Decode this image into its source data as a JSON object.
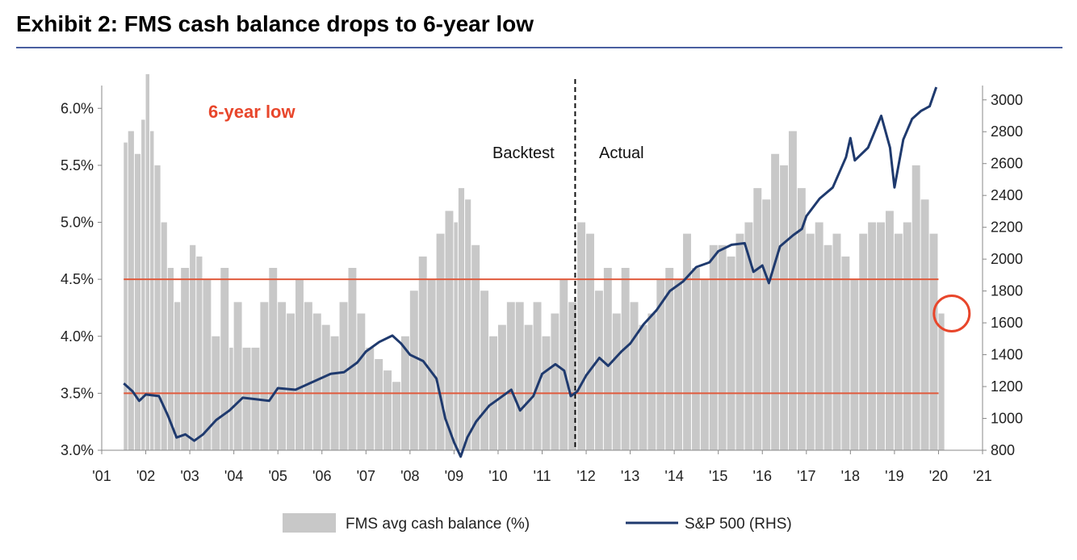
{
  "header": {
    "title": "Exhibit 2: FMS cash balance drops to 6-year low"
  },
  "colors": {
    "bar": "#c8c8c8",
    "line": "#1f3a6e",
    "threshold": "#e05a3c",
    "accent": "#e8462b",
    "rule": "#4a5fa0"
  },
  "annotations": {
    "low_label": "6-year low",
    "backtest": "Backtest",
    "actual": "Actual"
  },
  "legend": {
    "bars": "FMS avg cash balance (%)",
    "line": "S&P 500 (RHS)"
  },
  "chart_data": {
    "type": "bar",
    "title": "Exhibit 2: FMS cash balance drops to 6-year low",
    "x_ticks": [
      "'01",
      "'02",
      "'03",
      "'04",
      "'05",
      "'06",
      "'07",
      "'08",
      "'09",
      "'10",
      "'11",
      "'12",
      "'13",
      "'14",
      "'15",
      "'16",
      "'17",
      "'18",
      "'19",
      "'20",
      "'21"
    ],
    "xlim": [
      2001,
      2021
    ],
    "y_left": {
      "ticks": [
        "3.0%",
        "3.5%",
        "4.0%",
        "4.5%",
        "5.0%",
        "5.5%",
        "6.0%"
      ],
      "ylim": [
        3.0,
        6.2
      ]
    },
    "y_right": {
      "ticks": [
        "800",
        "1000",
        "1200",
        "1400",
        "1600",
        "1800",
        "2000",
        "2200",
        "2400",
        "2600",
        "2800",
        "3000"
      ],
      "ylim": [
        800,
        3090
      ]
    },
    "thresholds": [
      4.5,
      3.5
    ],
    "divider_x": 2011.75,
    "highlight_point": {
      "x": 2020.3,
      "y": 4.2
    },
    "series": [
      {
        "name": "FMS avg cash balance (%)",
        "kind": "bar",
        "points": [
          [
            2001.5,
            5.7
          ],
          [
            2001.6,
            5.8
          ],
          [
            2001.75,
            5.6
          ],
          [
            2001.9,
            5.9
          ],
          [
            2002.0,
            6.3
          ],
          [
            2002.1,
            5.8
          ],
          [
            2002.2,
            5.5
          ],
          [
            2002.35,
            5.0
          ],
          [
            2002.5,
            4.6
          ],
          [
            2002.65,
            4.3
          ],
          [
            2002.8,
            4.6
          ],
          [
            2003.0,
            4.8
          ],
          [
            2003.15,
            4.7
          ],
          [
            2003.3,
            4.5
          ],
          [
            2003.5,
            4.0
          ],
          [
            2003.7,
            4.6
          ],
          [
            2003.9,
            3.9
          ],
          [
            2004.0,
            4.3
          ],
          [
            2004.2,
            3.9
          ],
          [
            2004.4,
            3.9
          ],
          [
            2004.6,
            4.3
          ],
          [
            2004.8,
            4.6
          ],
          [
            2005.0,
            4.3
          ],
          [
            2005.2,
            4.2
          ],
          [
            2005.4,
            4.5
          ],
          [
            2005.6,
            4.3
          ],
          [
            2005.8,
            4.2
          ],
          [
            2006.0,
            4.1
          ],
          [
            2006.2,
            4.0
          ],
          [
            2006.4,
            4.3
          ],
          [
            2006.6,
            4.6
          ],
          [
            2006.8,
            4.2
          ],
          [
            2007.0,
            3.9
          ],
          [
            2007.2,
            3.8
          ],
          [
            2007.4,
            3.7
          ],
          [
            2007.6,
            3.6
          ],
          [
            2007.8,
            4.0
          ],
          [
            2008.0,
            4.4
          ],
          [
            2008.2,
            4.7
          ],
          [
            2008.4,
            4.5
          ],
          [
            2008.6,
            4.9
          ],
          [
            2008.8,
            5.1
          ],
          [
            2009.0,
            5.0
          ],
          [
            2009.1,
            5.3
          ],
          [
            2009.25,
            5.2
          ],
          [
            2009.4,
            4.8
          ],
          [
            2009.6,
            4.4
          ],
          [
            2009.8,
            4.0
          ],
          [
            2010.0,
            4.1
          ],
          [
            2010.2,
            4.3
          ],
          [
            2010.4,
            4.3
          ],
          [
            2010.6,
            4.1
          ],
          [
            2010.8,
            4.3
          ],
          [
            2011.0,
            4.0
          ],
          [
            2011.2,
            4.2
          ],
          [
            2011.4,
            4.5
          ],
          [
            2011.6,
            4.3
          ],
          [
            2011.8,
            5.0
          ],
          [
            2012.0,
            4.9
          ],
          [
            2012.2,
            4.4
          ],
          [
            2012.4,
            4.6
          ],
          [
            2012.6,
            4.2
          ],
          [
            2012.8,
            4.6
          ],
          [
            2013.0,
            4.3
          ],
          [
            2013.2,
            4.1
          ],
          [
            2013.4,
            4.2
          ],
          [
            2013.6,
            4.5
          ],
          [
            2013.8,
            4.6
          ],
          [
            2014.0,
            4.5
          ],
          [
            2014.2,
            4.9
          ],
          [
            2014.4,
            4.6
          ],
          [
            2014.6,
            4.5
          ],
          [
            2014.8,
            4.8
          ],
          [
            2015.0,
            4.8
          ],
          [
            2015.2,
            4.7
          ],
          [
            2015.4,
            4.9
          ],
          [
            2015.6,
            5.0
          ],
          [
            2015.8,
            5.3
          ],
          [
            2016.0,
            5.2
          ],
          [
            2016.2,
            5.6
          ],
          [
            2016.4,
            5.5
          ],
          [
            2016.6,
            5.8
          ],
          [
            2016.8,
            5.3
          ],
          [
            2017.0,
            4.9
          ],
          [
            2017.2,
            5.0
          ],
          [
            2017.4,
            4.8
          ],
          [
            2017.6,
            4.9
          ],
          [
            2017.8,
            4.7
          ],
          [
            2018.0,
            4.5
          ],
          [
            2018.2,
            4.9
          ],
          [
            2018.4,
            5.0
          ],
          [
            2018.6,
            5.0
          ],
          [
            2018.8,
            5.1
          ],
          [
            2019.0,
            4.9
          ],
          [
            2019.2,
            5.0
          ],
          [
            2019.4,
            5.5
          ],
          [
            2019.6,
            5.2
          ],
          [
            2019.8,
            4.9
          ],
          [
            2020.0,
            4.2
          ]
        ]
      },
      {
        "name": "S&P 500 (RHS)",
        "kind": "line",
        "points": [
          [
            2001.5,
            1220
          ],
          [
            2001.7,
            1170
          ],
          [
            2001.85,
            1110
          ],
          [
            2002.0,
            1150
          ],
          [
            2002.3,
            1140
          ],
          [
            2002.5,
            1020
          ],
          [
            2002.7,
            880
          ],
          [
            2002.9,
            900
          ],
          [
            2003.1,
            860
          ],
          [
            2003.3,
            900
          ],
          [
            2003.6,
            990
          ],
          [
            2003.9,
            1050
          ],
          [
            2004.2,
            1130
          ],
          [
            2004.5,
            1120
          ],
          [
            2004.8,
            1110
          ],
          [
            2005.0,
            1190
          ],
          [
            2005.4,
            1180
          ],
          [
            2005.8,
            1230
          ],
          [
            2006.2,
            1280
          ],
          [
            2006.5,
            1290
          ],
          [
            2006.8,
            1350
          ],
          [
            2007.0,
            1420
          ],
          [
            2007.3,
            1480
          ],
          [
            2007.6,
            1520
          ],
          [
            2007.8,
            1470
          ],
          [
            2008.0,
            1400
          ],
          [
            2008.3,
            1360
          ],
          [
            2008.6,
            1250
          ],
          [
            2008.8,
            1000
          ],
          [
            2009.0,
            850
          ],
          [
            2009.15,
            760
          ],
          [
            2009.3,
            880
          ],
          [
            2009.5,
            980
          ],
          [
            2009.8,
            1080
          ],
          [
            2010.0,
            1120
          ],
          [
            2010.3,
            1180
          ],
          [
            2010.5,
            1050
          ],
          [
            2010.8,
            1140
          ],
          [
            2011.0,
            1280
          ],
          [
            2011.3,
            1340
          ],
          [
            2011.5,
            1300
          ],
          [
            2011.65,
            1140
          ],
          [
            2011.8,
            1170
          ],
          [
            2012.0,
            1270
          ],
          [
            2012.3,
            1380
          ],
          [
            2012.5,
            1330
          ],
          [
            2012.8,
            1420
          ],
          [
            2013.0,
            1470
          ],
          [
            2013.3,
            1590
          ],
          [
            2013.6,
            1680
          ],
          [
            2013.9,
            1800
          ],
          [
            2014.2,
            1860
          ],
          [
            2014.5,
            1950
          ],
          [
            2014.8,
            1980
          ],
          [
            2015.0,
            2050
          ],
          [
            2015.3,
            2090
          ],
          [
            2015.6,
            2100
          ],
          [
            2015.8,
            1920
          ],
          [
            2016.0,
            1960
          ],
          [
            2016.15,
            1850
          ],
          [
            2016.4,
            2080
          ],
          [
            2016.7,
            2150
          ],
          [
            2016.9,
            2190
          ],
          [
            2017.0,
            2270
          ],
          [
            2017.3,
            2380
          ],
          [
            2017.6,
            2450
          ],
          [
            2017.9,
            2640
          ],
          [
            2018.0,
            2760
          ],
          [
            2018.1,
            2620
          ],
          [
            2018.4,
            2700
          ],
          [
            2018.7,
            2900
          ],
          [
            2018.9,
            2700
          ],
          [
            2019.0,
            2450
          ],
          [
            2019.2,
            2750
          ],
          [
            2019.4,
            2880
          ],
          [
            2019.6,
            2930
          ],
          [
            2019.8,
            2960
          ],
          [
            2019.95,
            3080
          ]
        ]
      }
    ]
  }
}
